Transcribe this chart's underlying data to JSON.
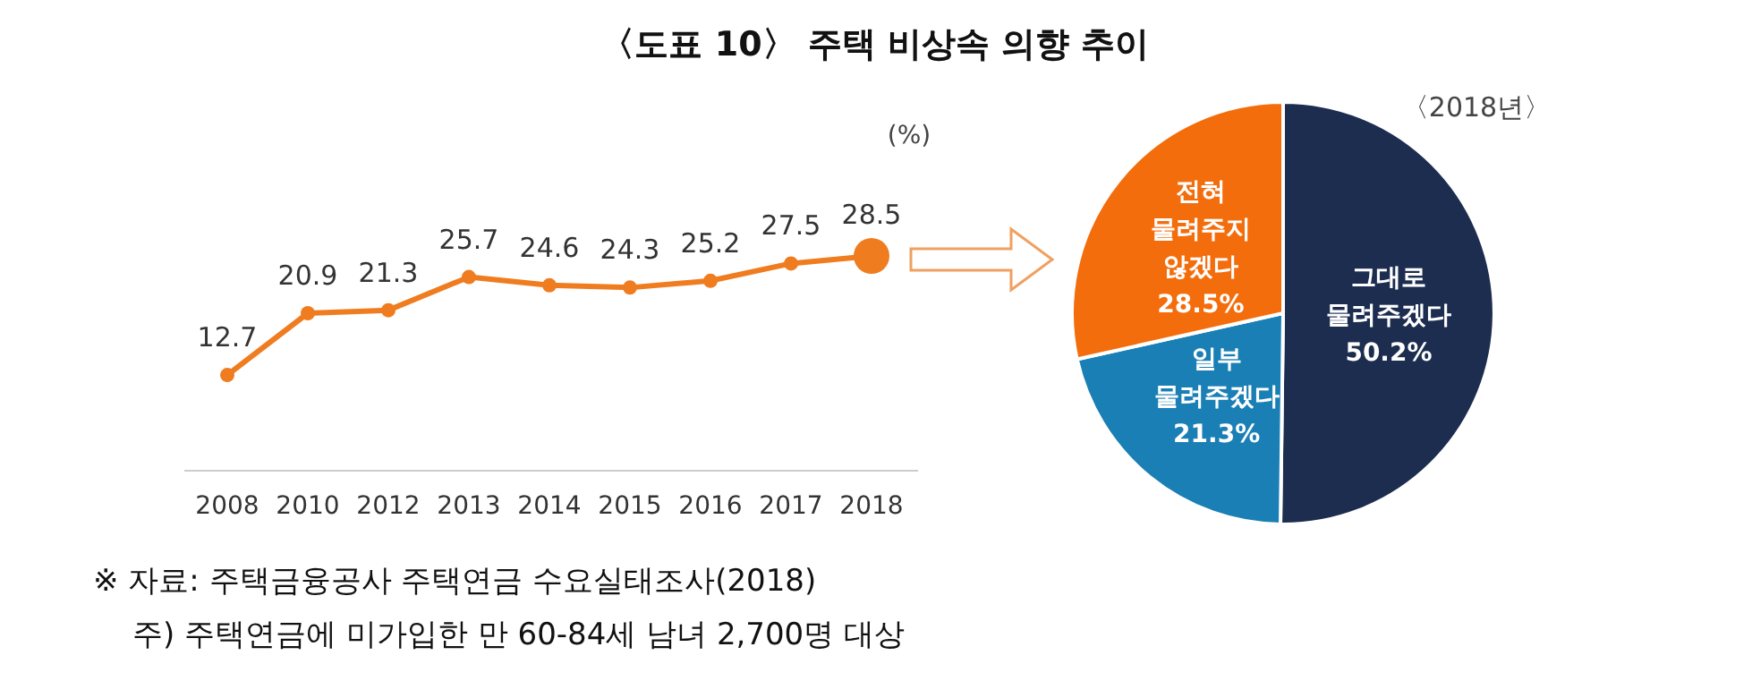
{
  "chart_data": [
    {
      "type": "line",
      "title": "〈도표 10〉 주택 비상속 의향 추이",
      "ylabel": "(%)",
      "categories": [
        "2008",
        "2010",
        "2012",
        "2013",
        "2014",
        "2015",
        "2016",
        "2017",
        "2018"
      ],
      "series": [
        {
          "color": "#f07c20",
          "values": [
            12.7,
            20.9,
            21.3,
            25.7,
            24.6,
            24.3,
            25.2,
            27.5,
            28.5
          ]
        }
      ],
      "tick_labels": "x",
      "data_labels": true,
      "marker": "circle",
      "annotations": [
        "※ 자료: 주택금융공사 주택연금 수요실태조사(2018)",
        "주) 주택연금에 미가입한 만 60-84세 남녀 2,700명 대상"
      ]
    },
    {
      "type": "pie",
      "title": "〈2018년〉",
      "categories": [
        "그대로\n물려주겠다",
        "일부\n물려주겠다",
        "전혀\n물려주지\n않겠다"
      ],
      "values": [
        50.2,
        21.3,
        28.5
      ],
      "colors": [
        "#1c2d4f",
        "#1a7fb5",
        "#f46d0c"
      ],
      "value_labels": [
        "50.2%",
        "21.3%",
        "28.5%"
      ]
    }
  ]
}
